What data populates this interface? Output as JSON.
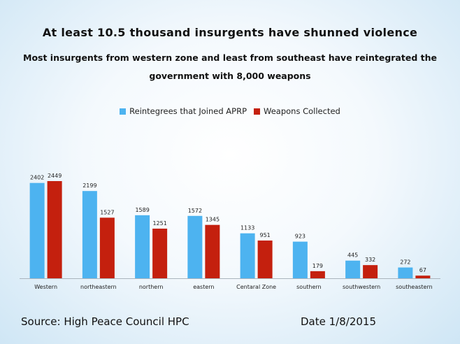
{
  "chart_data": {
    "type": "bar",
    "title": "At least 10.5 thousand insurgents have shunned violence",
    "subtitle": "Most insurgents from western zone and least from southeast have reintegrated  the government with 8,000 weapons",
    "categories": [
      "Western",
      "northeastern",
      "northern",
      "eastern",
      "Centaral Zone",
      "southern",
      "southwestern",
      "southeastern"
    ],
    "series": [
      {
        "name": "Reintegrees that Joined APRP",
        "color": "#4db3f0",
        "values": [
          2402,
          2199,
          1589,
          1572,
          1133,
          923,
          445,
          272
        ]
      },
      {
        "name": "Weapons Collected",
        "color": "#c4200e",
        "values": [
          2449,
          1527,
          1251,
          1345,
          951,
          179,
          332,
          67
        ]
      }
    ],
    "ylim": [
      0,
      2449
    ],
    "legend_position": "top",
    "grid": false
  },
  "footer": {
    "source": "Source: High Peace Council  HPC",
    "date": "Date 1/8/2015"
  }
}
